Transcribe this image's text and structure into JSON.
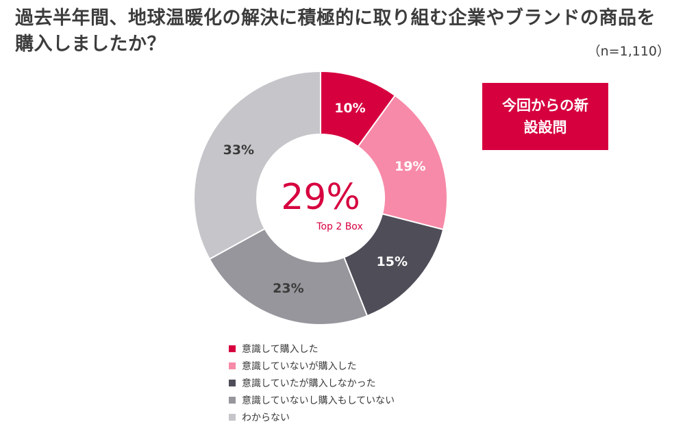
{
  "header": {
    "title": "過去半年間、地球温暖化の解決に積極的に取り組む企業やブランドの商品を購入しましたか？",
    "sample_size": "（n=1,110）"
  },
  "badge": {
    "text": "今回からの新設設問"
  },
  "chart_data": {
    "type": "pie",
    "donut": true,
    "center_value": "29%",
    "center_label": "Top 2 Box",
    "slices": [
      {
        "name": "意識して購入した",
        "value": 10,
        "label": "10%",
        "color": "#d6003f"
      },
      {
        "name": "意識していないが購入した",
        "value": 19,
        "label": "19%",
        "color": "#f78aa8"
      },
      {
        "name": "意識していたが購入しなかった",
        "value": 15,
        "label": "15%",
        "color": "#4e4d58"
      },
      {
        "name": "意識していないし購入もしていない",
        "value": 23,
        "label": "23%",
        "color": "#97969c"
      },
      {
        "name": "わからない",
        "value": 33,
        "label": "33%",
        "color": "#c6c5ca"
      }
    ],
    "legend_position": "bottom"
  }
}
